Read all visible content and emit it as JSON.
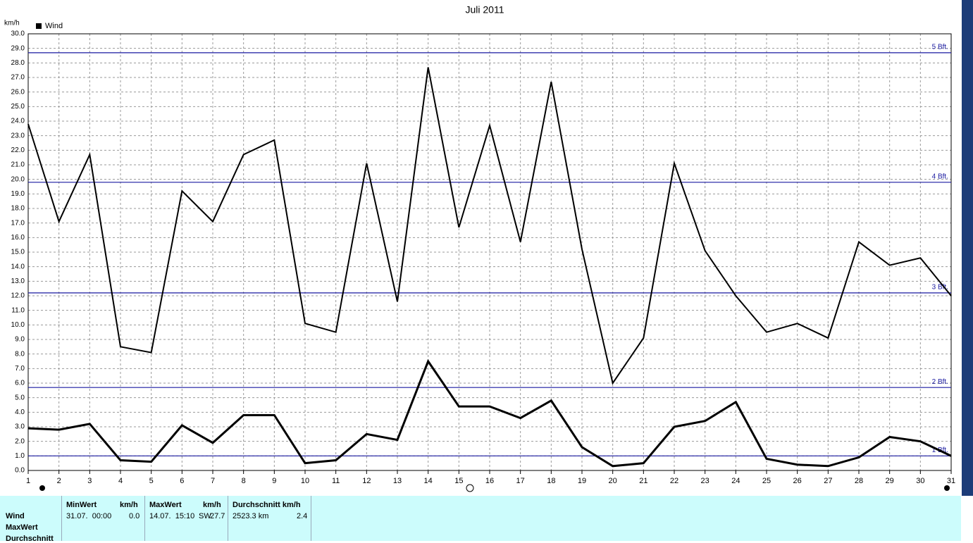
{
  "chart_data": {
    "type": "line",
    "title": "Juli 2011",
    "y_label": "km/h",
    "x": [
      1,
      2,
      3,
      4,
      5,
      6,
      7,
      8,
      9,
      10,
      11,
      12,
      13,
      14,
      15,
      16,
      17,
      18,
      19,
      20,
      21,
      22,
      23,
      24,
      25,
      26,
      27,
      28,
      29,
      30,
      31
    ],
    "xlim": [
      1,
      31
    ],
    "xticks": [
      1,
      2,
      3,
      4,
      5,
      6,
      7,
      8,
      9,
      10,
      11,
      12,
      13,
      14,
      15,
      16,
      17,
      18,
      19,
      20,
      21,
      22,
      23,
      24,
      25,
      26,
      27,
      28,
      29,
      30,
      31
    ],
    "ylim": [
      0,
      30
    ],
    "yticks": [
      {
        "value": 0,
        "label": "0.0"
      },
      {
        "value": 1,
        "label": "1.0"
      },
      {
        "value": 2,
        "label": "2.0"
      },
      {
        "value": 3,
        "label": "3.0"
      },
      {
        "value": 4,
        "label": "4.0"
      },
      {
        "value": 5,
        "label": "5.0"
      },
      {
        "value": 6,
        "label": "6.0"
      },
      {
        "value": 7,
        "label": "7.0"
      },
      {
        "value": 8,
        "label": "8.0"
      },
      {
        "value": 9,
        "label": "9.0"
      },
      {
        "value": 10,
        "label": "10.0"
      },
      {
        "value": 11,
        "label": "11.0"
      },
      {
        "value": 12,
        "label": "12.0"
      },
      {
        "value": 13,
        "label": "13.0"
      },
      {
        "value": 14,
        "label": "14.0"
      },
      {
        "value": 15,
        "label": "15.0"
      },
      {
        "value": 16,
        "label": "16.0"
      },
      {
        "value": 17,
        "label": "17.0"
      },
      {
        "value": 18,
        "label": "18.0"
      },
      {
        "value": 19,
        "label": "19.0"
      },
      {
        "value": 20,
        "label": "20.0"
      },
      {
        "value": 21,
        "label": "21.0"
      },
      {
        "value": 22,
        "label": "22.0"
      },
      {
        "value": 23,
        "label": "23.0"
      },
      {
        "value": 24,
        "label": "24.0"
      },
      {
        "value": 25,
        "label": "25.0"
      },
      {
        "value": 26,
        "label": "26.0"
      },
      {
        "value": 27,
        "label": "27.0"
      },
      {
        "value": 28,
        "label": "28.0"
      },
      {
        "value": 29,
        "label": "29.0"
      },
      {
        "value": 30,
        "label": "30.0"
      }
    ],
    "grid": true,
    "legend": "top-left",
    "series": [
      {
        "name": "Wind",
        "color": "#000000",
        "line_width": 3,
        "values": [
          2.9,
          2.8,
          3.2,
          0.7,
          0.6,
          3.1,
          1.9,
          3.8,
          3.8,
          0.5,
          0.7,
          2.5,
          2.1,
          7.5,
          4.4,
          4.4,
          3.6,
          4.8,
          1.6,
          0.3,
          0.5,
          3.0,
          3.4,
          4.7,
          0.8,
          0.4,
          0.3,
          0.9,
          2.3,
          2.0,
          1.0
        ]
      },
      {
        "color": "#000000",
        "line_width": 2,
        "values": [
          23.8,
          17.1,
          21.7,
          8.5,
          8.1,
          19.2,
          17.1,
          21.7,
          22.7,
          10.1,
          9.5,
          21.1,
          11.6,
          27.7,
          16.7,
          23.7,
          15.7,
          26.7,
          15.2,
          6.0,
          9.1,
          21.1,
          15.1,
          12.0,
          9.5,
          10.1,
          9.1,
          15.7,
          14.1,
          14.6,
          12.0
        ]
      }
    ],
    "reference_lines": [
      {
        "value": 1.0,
        "label": "1 Bft."
      },
      {
        "value": 5.7,
        "label": "2 Bft."
      },
      {
        "value": 12.2,
        "label": "3 Bft."
      },
      {
        "value": 19.8,
        "label": "4 Bft."
      },
      {
        "value": 28.7,
        "label": "5 Bft."
      }
    ],
    "reference_color": "#1a1aa0"
  },
  "stats": {
    "row_labels": [
      "Wind",
      "MaxWert",
      "Durchschnitt"
    ],
    "columns": [
      {
        "header": "MinWert",
        "unit": "km/h",
        "cells": [
          "31.07.  00:00",
          "0.0"
        ]
      },
      {
        "header": "MaxWert",
        "unit": "km/h",
        "cells": [
          "14.07.  15:10",
          "SW",
          "27.7"
        ]
      },
      {
        "header": "Durchschnitt km/h",
        "cells": [
          "2523.3 km",
          "2.4"
        ]
      }
    ]
  }
}
